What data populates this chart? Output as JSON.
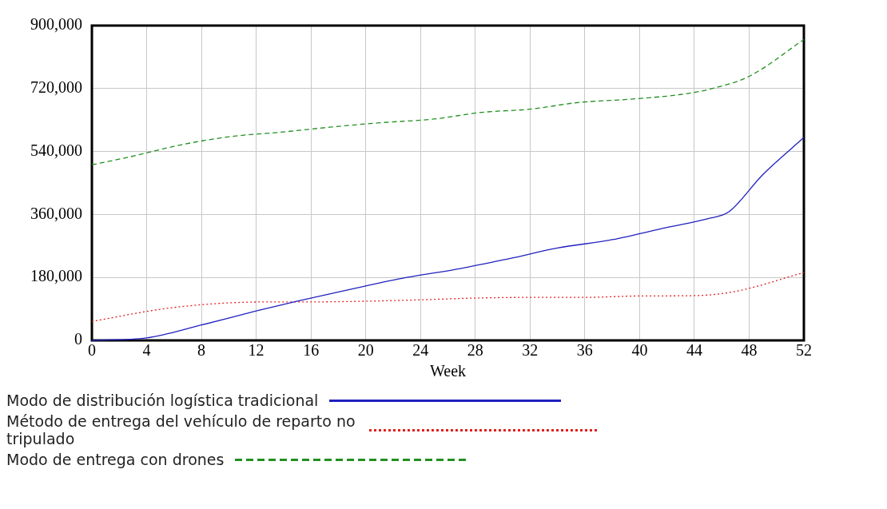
{
  "chart_data": {
    "type": "line",
    "xlabel": "Week",
    "xlim": [
      0,
      52
    ],
    "xticks": [
      0,
      4,
      8,
      12,
      16,
      20,
      24,
      28,
      32,
      36,
      40,
      44,
      48,
      52
    ],
    "ylim": [
      0,
      900000
    ],
    "yticks": [
      {
        "value": 0,
        "label": "0"
      },
      {
        "value": 180000,
        "label": "180,000"
      },
      {
        "value": 360000,
        "label": "360,000"
      },
      {
        "value": 540000,
        "label": "540,000"
      },
      {
        "value": 720000,
        "label": "720,000"
      },
      {
        "value": 900000,
        "label": "900,000"
      }
    ],
    "grid": true,
    "legend": "bottom",
    "marker": "none",
    "series": [
      {
        "name": "Modo de distribución logística tradicional",
        "color": "#2020c0",
        "line_style": "solid",
        "x": [
          0,
          4,
          8,
          12,
          15,
          19,
          23,
          27,
          30.5,
          34,
          38,
          42,
          45,
          46.5,
          49,
          52
        ],
        "values": [
          0,
          7000,
          44000,
          84000,
          112000,
          147000,
          180000,
          206000,
          234000,
          264000,
          288000,
          323000,
          348000,
          367000,
          474000,
          580000
        ]
      },
      {
        "name": "Método de entrega del vehículo de reparto no tripulado",
        "color": "#e02020",
        "line_style": "dotted",
        "x": [
          0,
          1.5,
          5,
          9,
          13,
          16,
          20,
          24,
          28,
          32,
          36,
          40,
          44,
          47,
          52
        ],
        "values": [
          54000,
          65000,
          89000,
          105000,
          110000,
          110000,
          112000,
          116000,
          121000,
          123000,
          123000,
          127000,
          128000,
          140000,
          194000
        ]
      },
      {
        "name": "Modo de entrega con drones",
        "color": "#209020",
        "line_style": "dashed",
        "x": [
          0,
          2.7,
          6.5,
          10,
          14,
          17.5,
          21,
          25,
          28.5,
          32,
          35.5,
          39.5,
          43,
          45,
          48,
          52
        ],
        "values": [
          502000,
          524000,
          559000,
          582000,
          596000,
          610000,
          622000,
          633000,
          652000,
          661000,
          680000,
          690000,
          703000,
          717000,
          755000,
          860000
        ]
      }
    ]
  }
}
